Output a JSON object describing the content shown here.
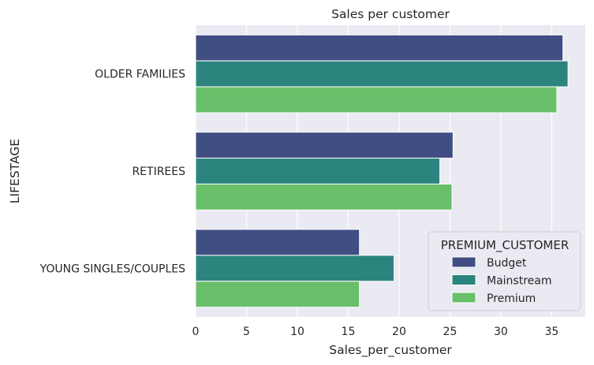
{
  "chart_data": {
    "type": "bar",
    "orientation": "horizontal",
    "title": "Sales per customer",
    "xlabel": "Sales_per_customer",
    "ylabel": "LIFESTAGE",
    "categories": [
      "OLDER FAMILIES",
      "RETIREES",
      "YOUNG SINGLES/COUPLES"
    ],
    "xlim": [
      0,
      38.3
    ],
    "xticks": [
      0,
      5,
      10,
      15,
      20,
      25,
      30,
      35
    ],
    "series": [
      {
        "name": "Budget",
        "color": "#414e83",
        "values": [
          36.1,
          25.3,
          16.1
        ]
      },
      {
        "name": "Mainstream",
        "color": "#2b847e",
        "values": [
          36.6,
          24.0,
          19.5
        ]
      },
      {
        "name": "Premium",
        "color": "#6abf6a",
        "values": [
          35.5,
          25.2,
          16.1
        ]
      }
    ],
    "legend": {
      "title": "PREMIUM_CUSTOMER",
      "placement": "lower-right"
    },
    "grid": true,
    "background": "#eaeaf2"
  }
}
